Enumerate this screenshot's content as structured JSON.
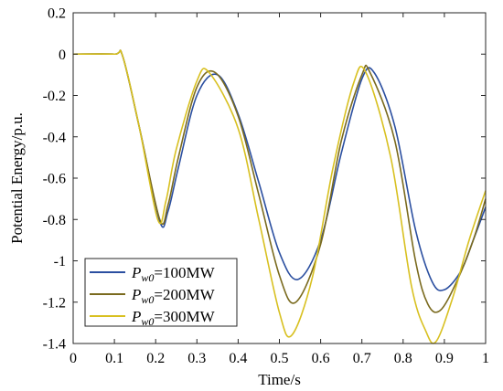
{
  "chart_data": {
    "type": "line",
    "title": "",
    "xlabel": "Time/s",
    "ylabel": "Potential Energy/p.u.",
    "xlim": [
      0,
      1
    ],
    "ylim": [
      -1.4,
      0.2
    ],
    "xticks": [
      "0",
      "0.1",
      "0.2",
      "0.3",
      "0.4",
      "0.5",
      "0.6",
      "0.7",
      "0.8",
      "0.9",
      "1"
    ],
    "yticks": [
      "0.2",
      "0",
      "-0.2",
      "-0.4",
      "-0.6",
      "-0.8",
      "-1",
      "-1.2",
      "-1.4"
    ],
    "grid": false,
    "legend_position": "bottom-left",
    "series": [
      {
        "name": "100MW",
        "legend_symbol": "P",
        "legend_subscript": "w0",
        "legend_suffix": "=100MW",
        "color": "#2b4fa0",
        "x": [
          0,
          0.1,
          0.12,
          0.16,
          0.21,
          0.23,
          0.255,
          0.3,
          0.35,
          0.4,
          0.45,
          0.5,
          0.545,
          0.6,
          0.65,
          0.7,
          0.73,
          0.78,
          0.83,
          0.87,
          0.9,
          0.94,
          0.97,
          1.0
        ],
        "y": [
          0,
          0,
          -0.01,
          -0.35,
          -0.81,
          -0.76,
          -0.55,
          -0.2,
          -0.1,
          -0.29,
          -0.62,
          -0.96,
          -1.09,
          -0.9,
          -0.48,
          -0.12,
          -0.09,
          -0.35,
          -0.85,
          -1.1,
          -1.14,
          -1.05,
          -0.9,
          -0.74
        ]
      },
      {
        "name": "200MW",
        "legend_symbol": "P",
        "legend_subscript": "w0",
        "legend_suffix": "=200MW",
        "color": "#7a6a1e",
        "x": [
          0,
          0.1,
          0.12,
          0.16,
          0.21,
          0.23,
          0.255,
          0.3,
          0.345,
          0.4,
          0.45,
          0.5,
          0.54,
          0.6,
          0.65,
          0.7,
          0.72,
          0.78,
          0.83,
          0.86,
          0.89,
          0.93,
          0.97,
          1.0
        ],
        "y": [
          0,
          0,
          -0.01,
          -0.35,
          -0.8,
          -0.73,
          -0.5,
          -0.16,
          -0.09,
          -0.3,
          -0.68,
          -1.07,
          -1.2,
          -0.92,
          -0.42,
          -0.1,
          -0.09,
          -0.42,
          -1.0,
          -1.21,
          -1.24,
          -1.1,
          -0.9,
          -0.7
        ]
      },
      {
        "name": "300MW",
        "legend_symbol": "P",
        "legend_subscript": "w0",
        "legend_suffix": "=300MW",
        "color": "#d8c020",
        "x": [
          0,
          0.1,
          0.12,
          0.16,
          0.205,
          0.225,
          0.25,
          0.3,
          0.33,
          0.4,
          0.45,
          0.5,
          0.53,
          0.58,
          0.63,
          0.68,
          0.71,
          0.77,
          0.82,
          0.855,
          0.88,
          0.92,
          0.96,
          1.0
        ],
        "y": [
          0,
          0,
          -0.01,
          -0.35,
          -0.8,
          -0.71,
          -0.46,
          -0.13,
          -0.09,
          -0.36,
          -0.8,
          -1.25,
          -1.36,
          -1.08,
          -0.55,
          -0.14,
          -0.09,
          -0.5,
          -1.12,
          -1.34,
          -1.39,
          -1.18,
          -0.9,
          -0.66
        ]
      }
    ]
  }
}
